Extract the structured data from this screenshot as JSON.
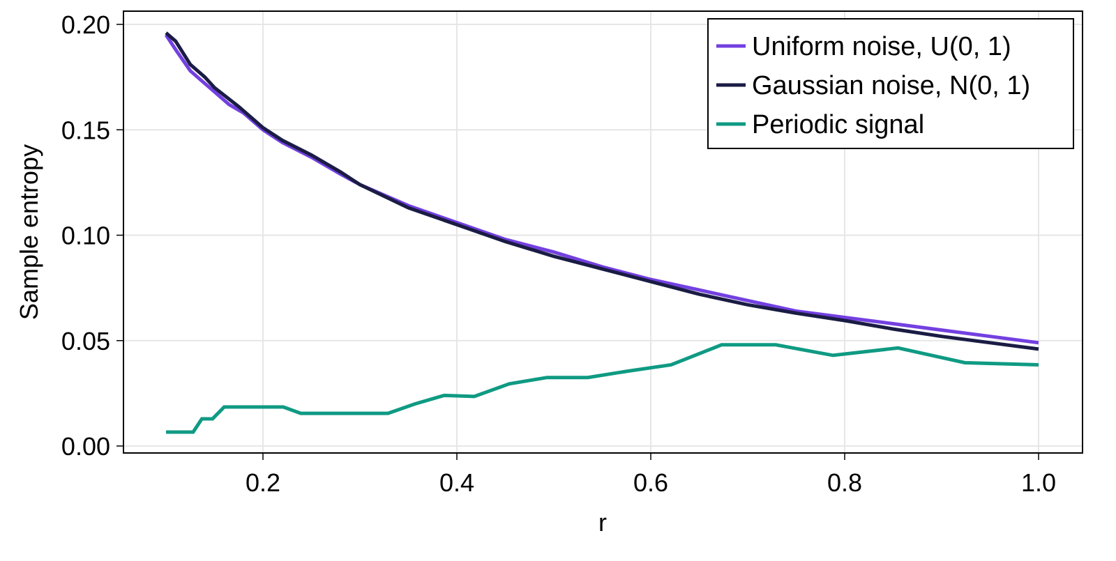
{
  "chart_data": {
    "type": "line",
    "title": "",
    "xlabel": "r",
    "ylabel": "Sample entropy",
    "xlim": [
      0.055,
      1.045
    ],
    "ylim": [
      -0.0033,
      0.2066
    ],
    "xticks": [
      0.2,
      0.4,
      0.6,
      0.8,
      1.0
    ],
    "xtick_labels": [
      "0.2",
      "0.4",
      "0.6",
      "0.8",
      "1.0"
    ],
    "yticks": [
      0.0,
      0.05,
      0.1,
      0.15,
      0.2
    ],
    "ytick_labels": [
      "0.00",
      "0.05",
      "0.10",
      "0.15",
      "0.20"
    ],
    "grid": true,
    "legend_position": "top-right",
    "series": [
      {
        "name": "Uniform noise, U(0, 1)",
        "color": "#7340e0",
        "x": [
          0.1,
          0.11,
          0.125,
          0.14,
          0.15,
          0.165,
          0.18,
          0.2,
          0.22,
          0.25,
          0.28,
          0.3,
          0.35,
          0.4,
          0.45,
          0.5,
          0.55,
          0.6,
          0.65,
          0.7,
          0.75,
          0.8,
          0.85,
          0.9,
          0.95,
          1.0
        ],
        "y": [
          0.195,
          0.188,
          0.178,
          0.172,
          0.168,
          0.162,
          0.158,
          0.15,
          0.144,
          0.137,
          0.129,
          0.124,
          0.114,
          0.106,
          0.098,
          0.092,
          0.085,
          0.079,
          0.074,
          0.069,
          0.064,
          0.061,
          0.058,
          0.055,
          0.052,
          0.049
        ]
      },
      {
        "name": "Gaussian noise, N(0, 1)",
        "color": "#1a1c44",
        "x": [
          0.1,
          0.11,
          0.125,
          0.14,
          0.15,
          0.175,
          0.19,
          0.2,
          0.22,
          0.25,
          0.28,
          0.3,
          0.35,
          0.4,
          0.45,
          0.5,
          0.55,
          0.6,
          0.65,
          0.7,
          0.75,
          0.8,
          0.85,
          0.9,
          0.95,
          1.0
        ],
        "y": [
          0.196,
          0.192,
          0.181,
          0.175,
          0.17,
          0.161,
          0.155,
          0.151,
          0.145,
          0.138,
          0.13,
          0.124,
          0.113,
          0.105,
          0.097,
          0.09,
          0.084,
          0.078,
          0.072,
          0.067,
          0.063,
          0.0595,
          0.0555,
          0.052,
          0.049,
          0.046
        ]
      },
      {
        "name": "Periodic signal",
        "color": "#0f9a83",
        "x": [
          0.1,
          0.128,
          0.137,
          0.148,
          0.16,
          0.221,
          0.239,
          0.329,
          0.357,
          0.387,
          0.418,
          0.454,
          0.493,
          0.535,
          0.576,
          0.621,
          0.673,
          0.729,
          0.788,
          0.855,
          0.924,
          1.0
        ],
        "y": [
          0.0066,
          0.0066,
          0.0129,
          0.0129,
          0.0185,
          0.0185,
          0.0155,
          0.0155,
          0.02,
          0.024,
          0.0235,
          0.0295,
          0.0325,
          0.0325,
          0.0355,
          0.0385,
          0.048,
          0.048,
          0.043,
          0.0465,
          0.0395,
          0.0385
        ]
      }
    ]
  }
}
